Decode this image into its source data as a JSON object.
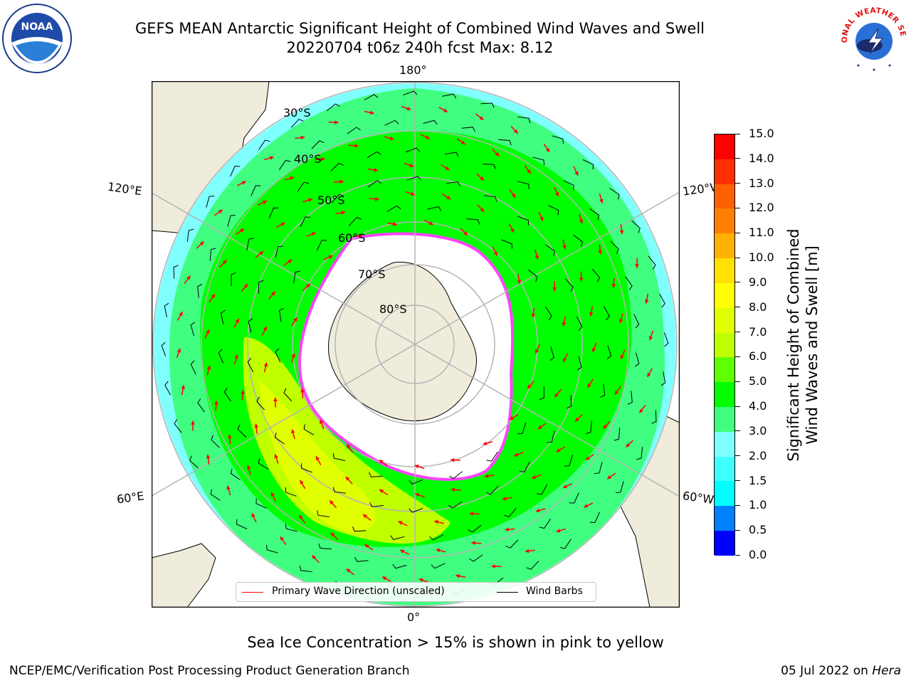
{
  "title": {
    "line1": "GEFS MEAN Antarctic Significant Height of Combined Wind Waves and Swell",
    "line2": "20220704 t06z 240h fcst   Max: 8.12"
  },
  "map": {
    "projection": "south-polar-stereographic",
    "lon_labels": [
      "180°",
      "120°E",
      "120°W",
      "60°E",
      "60°W",
      "0°"
    ],
    "lat_labels": [
      "30°S",
      "40°S",
      "50°S",
      "60°S",
      "70°S",
      "80°S"
    ],
    "colors": {
      "land": "#efecdc",
      "ice": "#ffffff",
      "ice_edge": [
        "#ff44ff",
        "#ffa500",
        "#ffff00"
      ],
      "graticule": "#b4b4b4",
      "wave_arrow": "#ff0000",
      "wind_barb": "#000000"
    }
  },
  "colorbar": {
    "label": "Significant Height of Combined\nWind Waves and Swell [m]",
    "ticks": [
      "0.0",
      "0.5",
      "1.0",
      "1.5",
      "2.0",
      "3.0",
      "4.0",
      "5.0",
      "6.0",
      "7.0",
      "8.0",
      "9.0",
      "10.0",
      "11.0",
      "12.0",
      "13.0",
      "14.0",
      "15.0"
    ],
    "colors": [
      "#0000ff",
      "#0080ff",
      "#00ffff",
      "#40ffff",
      "#80ffff",
      "#40ff80",
      "#00ff00",
      "#60ff00",
      "#c0ff00",
      "#e0ff00",
      "#ffff00",
      "#ffe000",
      "#ffb000",
      "#ff8000",
      "#ff6000",
      "#ff3000",
      "#ff0000"
    ]
  },
  "legend": {
    "wave_label": "Primary Wave Direction (unscaled)",
    "wind_label": "Wind Barbs"
  },
  "sea_ice_note": "Sea Ice Concentration > 15% is shown in pink to yellow",
  "footer": {
    "left": "NCEP/EMC/Verification Post Processing Product Generation Branch",
    "right_prefix": "05 Jul 2022 on ",
    "right_machine": "Hera"
  },
  "logos": {
    "left": {
      "icon": "noaa-logo",
      "text": "NOAA"
    },
    "right": {
      "icon": "national-weather-service-logo",
      "text": "NATIONAL WEATHER SERVICE"
    }
  }
}
